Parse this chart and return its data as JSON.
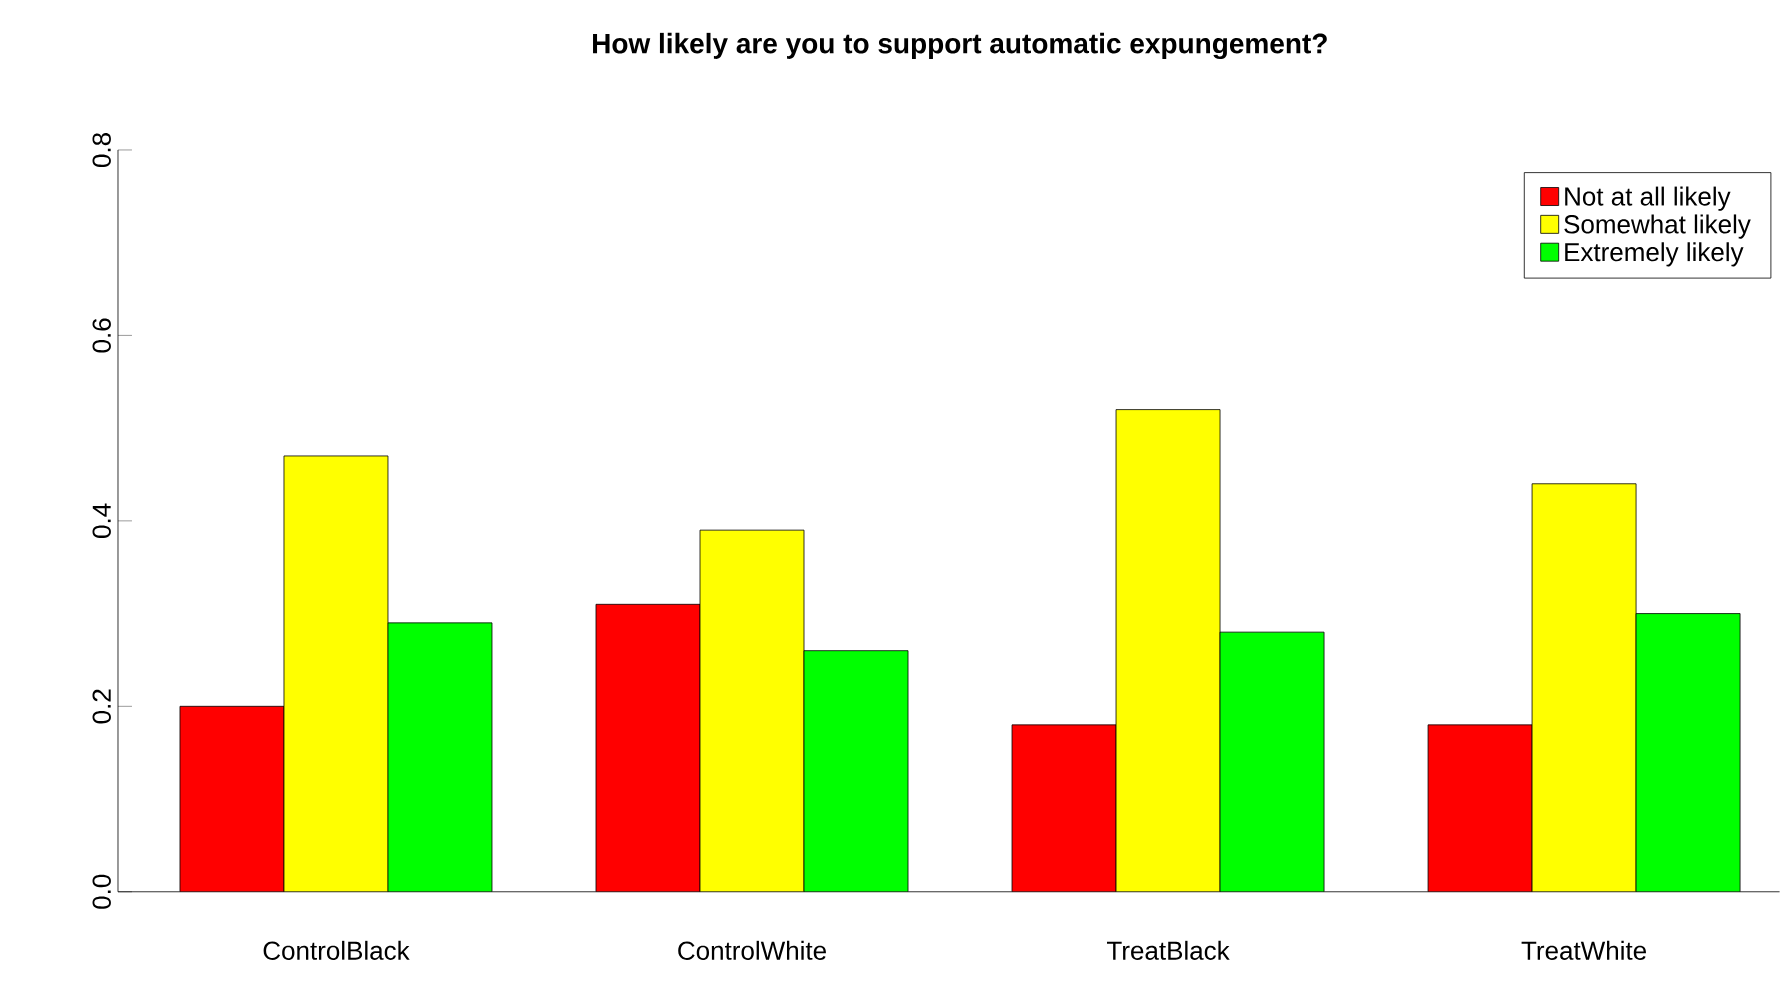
{
  "chart_data": {
    "type": "bar",
    "title": "How likely are you to support automatic expungement?",
    "categories": [
      "ControlBlack",
      "ControlWhite",
      "TreatBlack",
      "TreatWhite"
    ],
    "series": [
      {
        "name": "Not at all likely",
        "color": "#ff0000",
        "values": [
          0.2,
          0.31,
          0.18,
          0.18
        ]
      },
      {
        "name": "Somewhat likely",
        "color": "#ffff00",
        "values": [
          0.47,
          0.39,
          0.52,
          0.44
        ]
      },
      {
        "name": "Extremely likely",
        "color": "#00ff00",
        "values": [
          0.29,
          0.26,
          0.28,
          0.3
        ]
      }
    ],
    "ylim": [
      0,
      0.8
    ],
    "yticks": [
      {
        "value": 0,
        "label": "0.0"
      },
      0.2,
      0.4,
      0.6,
      0.8
    ],
    "legend": "top right"
  }
}
